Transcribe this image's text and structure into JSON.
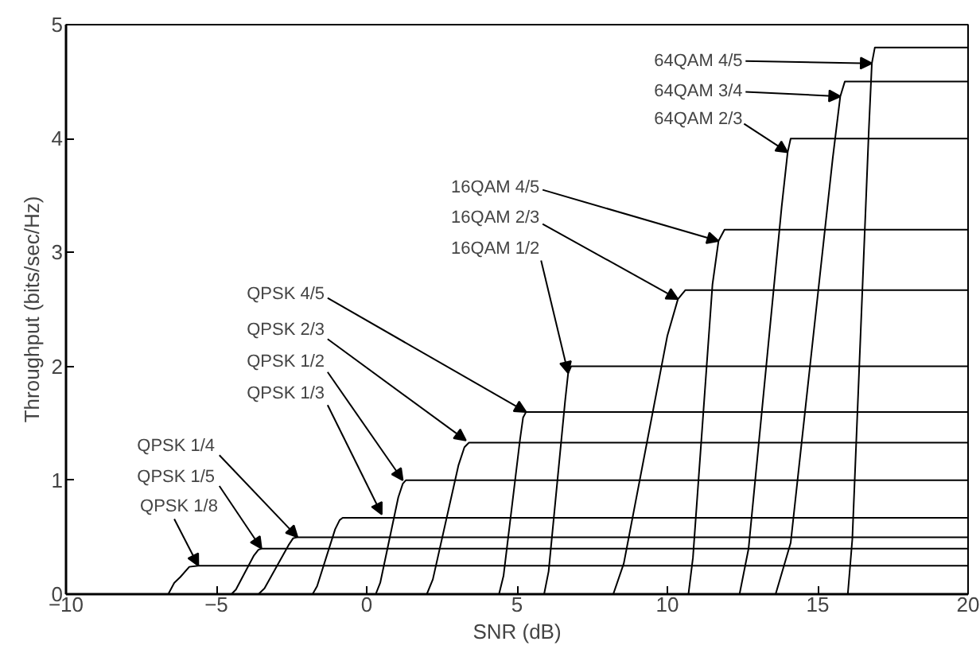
{
  "chart_data": {
    "type": "line",
    "xlabel": "SNR (dB)",
    "ylabel": "Throughput (bits/sec/Hz)",
    "xlim": [
      -10,
      20
    ],
    "ylim": [
      0,
      5
    ],
    "xticks": [
      -10,
      -5,
      0,
      5,
      10,
      15,
      20
    ],
    "yticks": [
      0,
      1,
      2,
      3,
      4,
      5
    ],
    "grid": false,
    "marker": "none",
    "line_style": "solid",
    "series": [
      {
        "color": "#000000",
        "x": [
          -6.6,
          -6.4,
          -6.2,
          -5.9,
          -5.6,
          20
        ],
        "values": [
          0,
          0.1,
          0.15,
          0.24,
          0.25,
          0.25
        ]
      },
      {
        "color": "#000000",
        "x": [
          -4.5,
          -4.35,
          -3.75,
          -3.6,
          -3.5,
          20
        ],
        "values": [
          0,
          0.04,
          0.34,
          0.39,
          0.4,
          0.4
        ]
      },
      {
        "color": "#000000",
        "x": [
          -3.6,
          -3.4,
          -2.6,
          -2.45,
          -2.3,
          20
        ],
        "values": [
          0,
          0.05,
          0.43,
          0.49,
          0.5,
          0.5
        ]
      },
      {
        "color": "#000000",
        "x": [
          -1.8,
          -1.65,
          -1.05,
          -0.9,
          -0.8,
          20
        ],
        "values": [
          0,
          0.07,
          0.57,
          0.65,
          0.67,
          0.67
        ]
      },
      {
        "color": "#000000",
        "x": [
          0.3,
          0.45,
          1.05,
          1.2,
          1.3,
          20
        ],
        "values": [
          0,
          0.1,
          0.85,
          0.97,
          1.0,
          1.0
        ]
      },
      {
        "color": "#000000",
        "x": [
          2.0,
          2.2,
          3.05,
          3.25,
          3.4,
          20
        ],
        "values": [
          0,
          0.13,
          1.13,
          1.29,
          1.33,
          1.33
        ]
      },
      {
        "color": "#000000",
        "x": [
          4.4,
          4.55,
          5.1,
          5.2,
          5.3,
          20
        ],
        "values": [
          0,
          0.16,
          1.36,
          1.55,
          1.6,
          1.6
        ]
      },
      {
        "color": "#000000",
        "x": [
          5.9,
          6.05,
          6.6,
          6.7,
          6.8,
          20
        ],
        "values": [
          0,
          0.2,
          1.7,
          1.94,
          2.0,
          2.0
        ]
      },
      {
        "color": "#000000",
        "x": [
          8.2,
          8.55,
          10.0,
          10.35,
          10.6,
          20
        ],
        "values": [
          0,
          0.27,
          2.27,
          2.59,
          2.67,
          2.67
        ]
      },
      {
        "color": "#000000",
        "x": [
          10.7,
          10.85,
          11.5,
          11.7,
          11.9,
          20
        ],
        "values": [
          0,
          0.32,
          2.72,
          3.1,
          3.2,
          3.2
        ]
      },
      {
        "color": "#000000",
        "x": [
          12.4,
          12.7,
          13.8,
          14.0,
          14.1,
          20
        ],
        "values": [
          0,
          0.4,
          3.4,
          3.88,
          4.0,
          4.0
        ]
      },
      {
        "color": "#000000",
        "x": [
          13.6,
          14.1,
          15.5,
          15.75,
          15.9,
          20
        ],
        "values": [
          0,
          0.45,
          3.83,
          4.37,
          4.5,
          4.5
        ]
      },
      {
        "color": "#000000",
        "x": [
          16.0,
          16.15,
          16.7,
          16.8,
          16.9,
          20
        ],
        "values": [
          0,
          0.48,
          4.08,
          4.66,
          4.8,
          4.8
        ]
      }
    ],
    "annotations": [
      {
        "text": "QPSK 1/8",
        "x": -5.6,
        "y": 0.25
      },
      {
        "text": "QPSK 1/5",
        "x": -3.5,
        "y": 0.4
      },
      {
        "text": "QPSK 1/4",
        "x": -2.3,
        "y": 0.5
      },
      {
        "text": "QPSK 1/3",
        "x": 0.5,
        "y": 0.7
      },
      {
        "text": "QPSK 1/2",
        "x": 1.2,
        "y": 1.0
      },
      {
        "text": "QPSK 2/3",
        "x": 3.3,
        "y": 1.35
      },
      {
        "text": "QPSK 4/5",
        "x": 5.3,
        "y": 1.6
      },
      {
        "text": "16QAM 1/2",
        "x": 6.7,
        "y": 1.94
      },
      {
        "text": "16QAM 2/3",
        "x": 10.35,
        "y": 2.59
      },
      {
        "text": "16QAM 4/5",
        "x": 11.7,
        "y": 3.1
      },
      {
        "text": "64QAM 2/3",
        "x": 14.0,
        "y": 3.88
      },
      {
        "text": "64QAM 3/4",
        "x": 15.75,
        "y": 4.37
      },
      {
        "text": "64QAM 4/5",
        "x": 16.8,
        "y": 4.66
      }
    ]
  }
}
